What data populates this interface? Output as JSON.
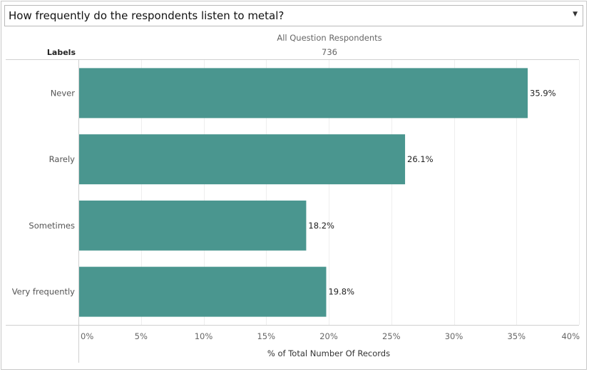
{
  "dropdown": {
    "label": "How frequently do the respondents listen to metal?"
  },
  "header": {
    "row_label": "Labels",
    "column_title": "All Question Respondents",
    "column_count": "736"
  },
  "chart_data": {
    "type": "bar",
    "orientation": "horizontal",
    "categories": [
      "Never",
      "Rarely",
      "Sometimes",
      "Very frequently"
    ],
    "values": [
      35.9,
      26.1,
      18.2,
      19.8
    ],
    "value_labels": [
      "35.9%",
      "26.1%",
      "18.2%",
      "19.8%"
    ],
    "xlabel": "% of Total Number Of Records",
    "xlim": [
      0,
      40
    ],
    "x_ticks": [
      0,
      5,
      10,
      15,
      20,
      25,
      30,
      35,
      40
    ],
    "x_tick_labels": [
      "0%",
      "5%",
      "10%",
      "15%",
      "20%",
      "25%",
      "30%",
      "35%",
      "40%"
    ],
    "grid": true,
    "bar_color": "#4a968f"
  }
}
